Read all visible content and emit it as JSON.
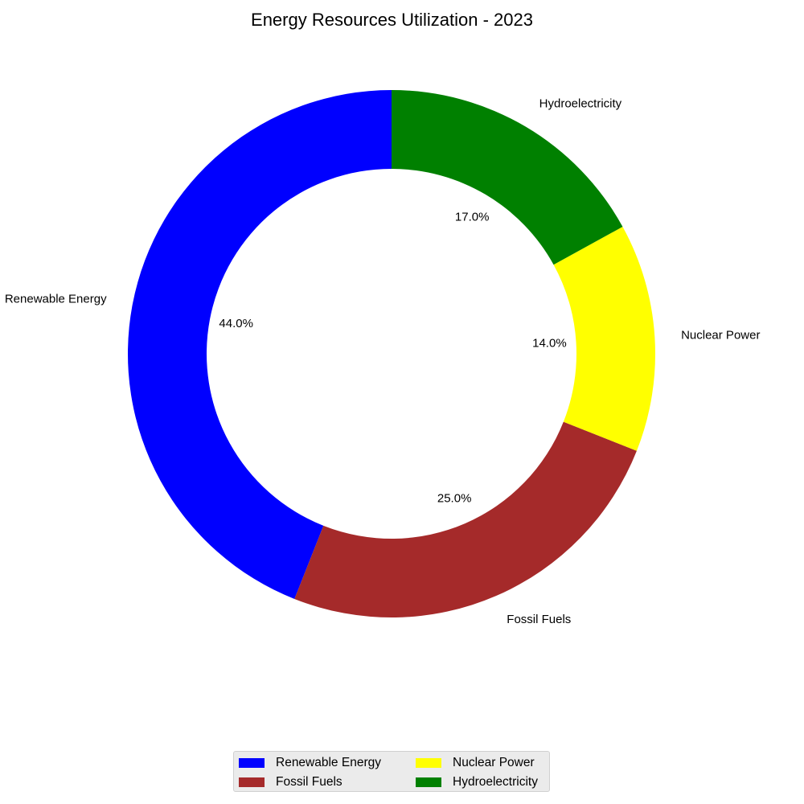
{
  "chart_data": {
    "type": "pie",
    "variant": "donut",
    "title": "Energy Resources Utilization - 2023",
    "categories": [
      "Renewable Energy",
      "Fossil Fuels",
      "Nuclear Power",
      "Hydroelectricity"
    ],
    "values": [
      44.0,
      25.0,
      14.0,
      17.0
    ],
    "value_labels": [
      "44.0%",
      "25.0%",
      "14.0%",
      "17.0%"
    ],
    "colors": [
      "#0000ff",
      "#a52a2a",
      "#ffff00",
      "#008000"
    ],
    "start_angle_deg": 90,
    "direction": "counterclockwise",
    "legend": {
      "placement": "bottom-center",
      "columns": 2,
      "entries": [
        "Renewable Energy",
        "Fossil Fuels",
        "Nuclear Power",
        "Hydroelectricity"
      ]
    }
  }
}
